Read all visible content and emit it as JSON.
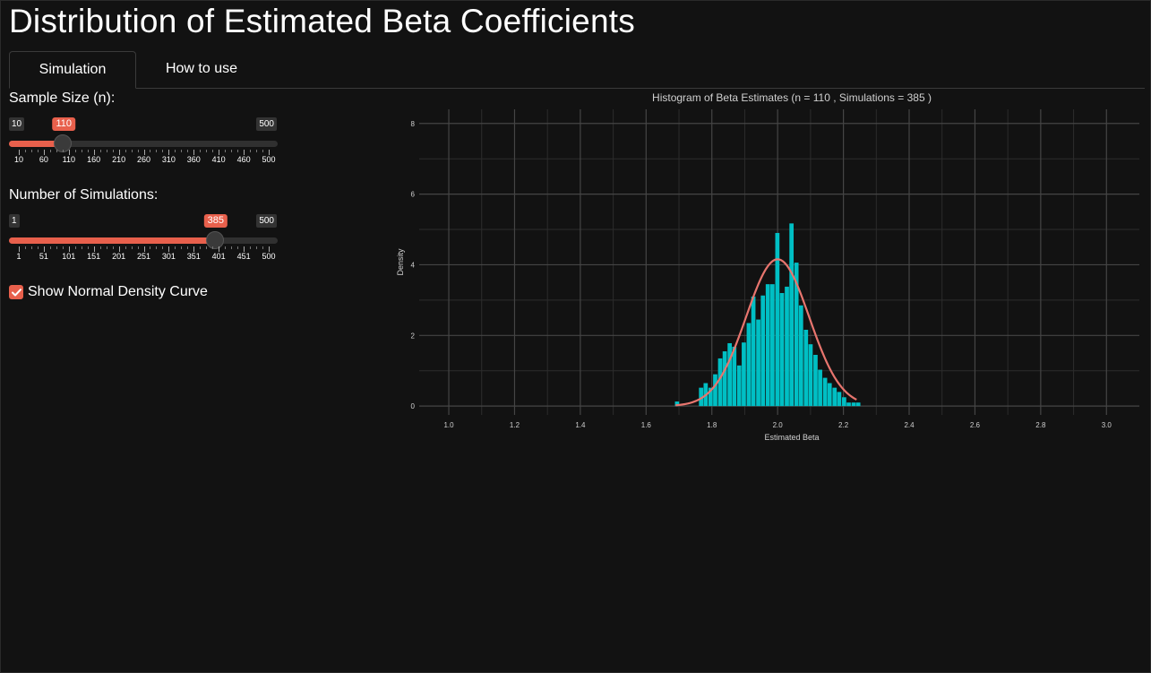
{
  "app": {
    "title": "Distribution of Estimated Beta Coefficients"
  },
  "tabs": [
    {
      "label": "Simulation",
      "active": true
    },
    {
      "label": "How to use",
      "active": false
    }
  ],
  "controls": {
    "sample_size": {
      "label": "Sample Size (n):",
      "min": 10,
      "max": 500,
      "value": 110,
      "min_label": "10",
      "max_label": "500",
      "value_label": "110",
      "tick_labels": [
        "10",
        "60",
        "110",
        "160",
        "210",
        "260",
        "310",
        "360",
        "410",
        "460",
        "500"
      ]
    },
    "simulations": {
      "label": "Number of Simulations:",
      "min": 1,
      "max": 500,
      "value": 385,
      "min_label": "1",
      "max_label": "500",
      "value_label": "385",
      "tick_labels": [
        "1",
        "51",
        "101",
        "151",
        "201",
        "251",
        "301",
        "351",
        "401",
        "451",
        "500"
      ]
    },
    "show_density": {
      "label": "Show Normal Density Curve",
      "checked": true
    }
  },
  "colors": {
    "accent": "#e8604c",
    "bar": "#00bfc4",
    "curve": "#e8756e",
    "background": "#121212"
  },
  "chart_data": {
    "type": "bar",
    "title": "Histogram of Beta Estimates (n = 110 , Simulations = 385 )",
    "xlabel": "Estimated Beta",
    "ylabel": "Density",
    "xlim": [
      0.91,
      3.1
    ],
    "ylim": [
      -0.25,
      8.4
    ],
    "x_ticks": [
      "1.0",
      "1.2",
      "1.4",
      "1.6",
      "1.8",
      "2.0",
      "2.2",
      "2.4",
      "2.6",
      "2.8",
      "3.0"
    ],
    "y_ticks": [
      "0",
      "2",
      "4",
      "6",
      "8"
    ],
    "bin_width": 0.0145,
    "bins": [
      {
        "x": 1.695,
        "density": 0.13
      },
      {
        "x": 1.71,
        "density": 0.0
      },
      {
        "x": 1.724,
        "density": 0.0
      },
      {
        "x": 1.739,
        "density": 0.0
      },
      {
        "x": 1.753,
        "density": 0.0
      },
      {
        "x": 1.768,
        "density": 0.52
      },
      {
        "x": 1.782,
        "density": 0.65
      },
      {
        "x": 1.797,
        "density": 0.52
      },
      {
        "x": 1.811,
        "density": 0.9
      },
      {
        "x": 1.826,
        "density": 1.35
      },
      {
        "x": 1.84,
        "density": 1.55
      },
      {
        "x": 1.855,
        "density": 1.78
      },
      {
        "x": 1.869,
        "density": 1.68
      },
      {
        "x": 1.884,
        "density": 1.15
      },
      {
        "x": 1.898,
        "density": 1.8
      },
      {
        "x": 1.913,
        "density": 2.35
      },
      {
        "x": 1.927,
        "density": 3.1
      },
      {
        "x": 1.942,
        "density": 2.45
      },
      {
        "x": 1.956,
        "density": 3.13
      },
      {
        "x": 1.971,
        "density": 3.45
      },
      {
        "x": 1.985,
        "density": 3.45
      },
      {
        "x": 2.0,
        "density": 4.9
      },
      {
        "x": 2.014,
        "density": 3.2
      },
      {
        "x": 2.029,
        "density": 3.38
      },
      {
        "x": 2.043,
        "density": 5.17
      },
      {
        "x": 2.058,
        "density": 4.06
      },
      {
        "x": 2.072,
        "density": 2.85
      },
      {
        "x": 2.087,
        "density": 2.16
      },
      {
        "x": 2.101,
        "density": 1.75
      },
      {
        "x": 2.116,
        "density": 1.45
      },
      {
        "x": 2.13,
        "density": 1.03
      },
      {
        "x": 2.145,
        "density": 0.8
      },
      {
        "x": 2.159,
        "density": 0.65
      },
      {
        "x": 2.174,
        "density": 0.52
      },
      {
        "x": 2.188,
        "density": 0.4
      },
      {
        "x": 2.203,
        "density": 0.25
      },
      {
        "x": 2.217,
        "density": 0.1
      },
      {
        "x": 2.232,
        "density": 0.1
      },
      {
        "x": 2.246,
        "density": 0.1
      }
    ],
    "normal_curve": {
      "mean": 2.0,
      "sd": 0.096,
      "x_range": [
        1.69,
        2.24
      ]
    }
  }
}
